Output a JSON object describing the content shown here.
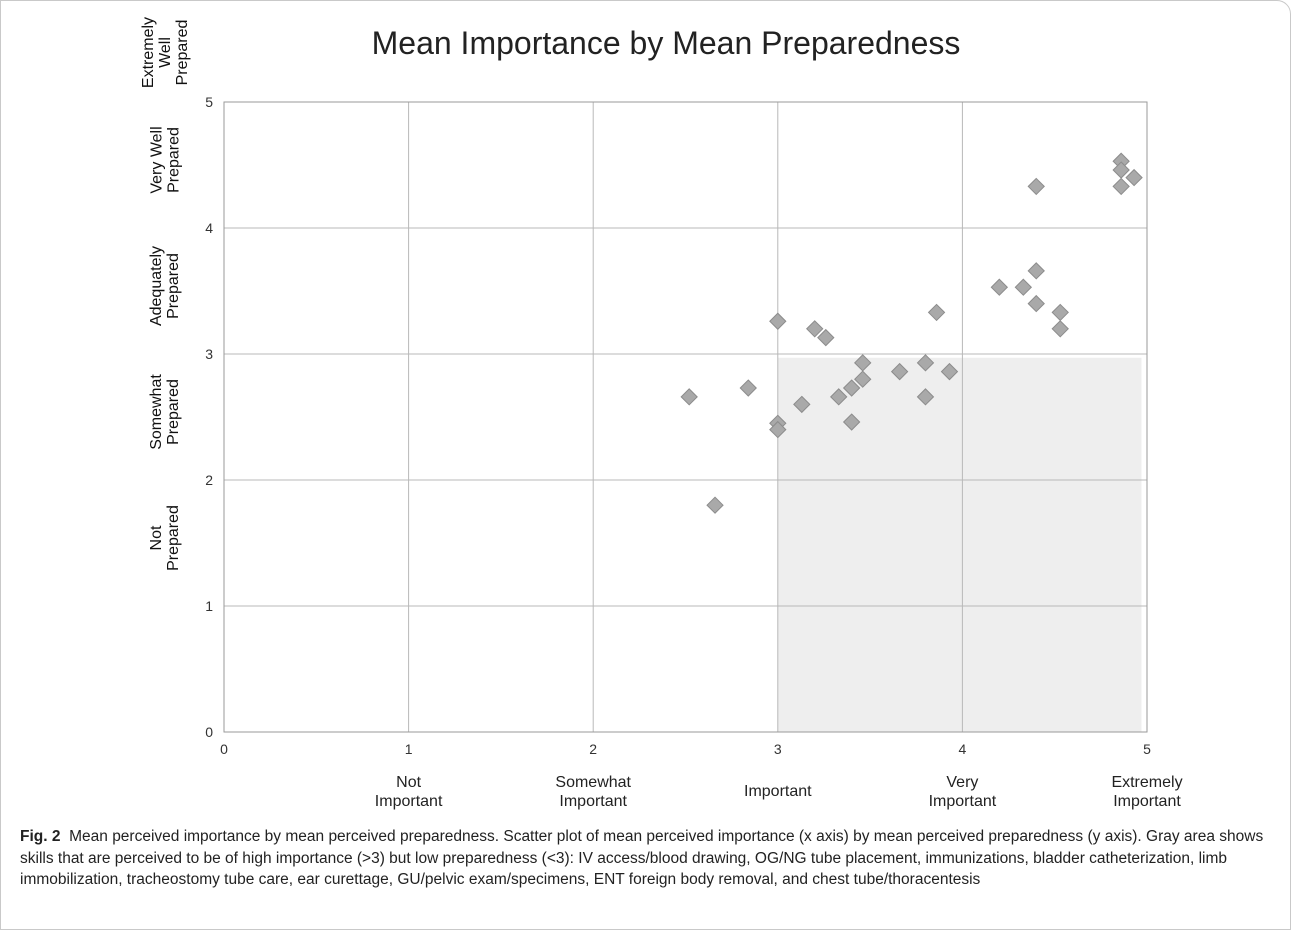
{
  "chart_data": {
    "type": "scatter",
    "title": "Mean Importance by Mean Preparedness",
    "xlabel": "",
    "ylabel": "",
    "xlim": [
      0,
      5
    ],
    "ylim": [
      0,
      5
    ],
    "grid": true,
    "x_ticks": [
      "0",
      "1",
      "2",
      "3",
      "4",
      "5"
    ],
    "y_ticks": [
      "0",
      "1",
      "2",
      "3",
      "4",
      "5"
    ],
    "x_category_labels": [
      {
        "at": 1,
        "lines": [
          "Not",
          "Important"
        ]
      },
      {
        "at": 2,
        "lines": [
          "Somewhat",
          "Important"
        ]
      },
      {
        "at": 3,
        "lines": [
          "Important"
        ]
      },
      {
        "at": 4,
        "lines": [
          "Very",
          "Important"
        ]
      },
      {
        "at": 5,
        "lines": [
          "Extremely",
          "Important"
        ]
      }
    ],
    "y_category_labels": [
      {
        "at": 1,
        "lines": [
          "Not",
          "Prepared"
        ]
      },
      {
        "at": 2,
        "lines": [
          "Somewhat",
          "Prepared"
        ]
      },
      {
        "at": 3,
        "lines": [
          "Adequately",
          "Prepared"
        ]
      },
      {
        "at": 4,
        "lines": [
          "Very Well",
          "Prepared"
        ]
      },
      {
        "at": 5,
        "lines": [
          "Extremely",
          "Well",
          "Prepared"
        ]
      }
    ],
    "shaded_region": {
      "x": [
        3,
        4.97
      ],
      "y": [
        0,
        2.97
      ],
      "color": "#eeeeee"
    },
    "marker_color": "#a9a9a9",
    "series": [
      {
        "points": [
          [
            2.52,
            2.66
          ],
          [
            2.66,
            1.8
          ],
          [
            2.84,
            2.73
          ],
          [
            3.0,
            3.26
          ],
          [
            3.0,
            2.45
          ],
          [
            3.0,
            2.4
          ],
          [
            3.13,
            2.6
          ],
          [
            3.2,
            3.2
          ],
          [
            3.26,
            3.13
          ],
          [
            3.33,
            2.66
          ],
          [
            3.4,
            2.73
          ],
          [
            3.4,
            2.46
          ],
          [
            3.46,
            2.93
          ],
          [
            3.46,
            2.8
          ],
          [
            3.66,
            2.86
          ],
          [
            3.8,
            2.93
          ],
          [
            3.8,
            2.66
          ],
          [
            3.86,
            3.33
          ],
          [
            3.93,
            2.86
          ],
          [
            4.2,
            3.53
          ],
          [
            4.33,
            3.53
          ],
          [
            4.4,
            3.66
          ],
          [
            4.4,
            3.4
          ],
          [
            4.4,
            4.33
          ],
          [
            4.53,
            3.33
          ],
          [
            4.53,
            3.2
          ],
          [
            4.86,
            4.53
          ],
          [
            4.86,
            4.46
          ],
          [
            4.86,
            4.33
          ],
          [
            4.93,
            4.4
          ]
        ]
      }
    ]
  },
  "caption": {
    "label": "Fig. 2",
    "text": "Mean perceived importance by mean perceived preparedness. Scatter plot of mean perceived importance (x axis) by mean perceived preparedness (y axis). Gray area shows skills that are perceived to be of high importance (>3) but low preparedness (<3): IV access/blood drawing, OG/NG tube placement, immunizations, bladder catheterization, limb immobilization, tracheostomy tube care, ear curettage, GU/pelvic exam/specimens, ENT foreign body removal, and chest tube/thoracentesis"
  }
}
